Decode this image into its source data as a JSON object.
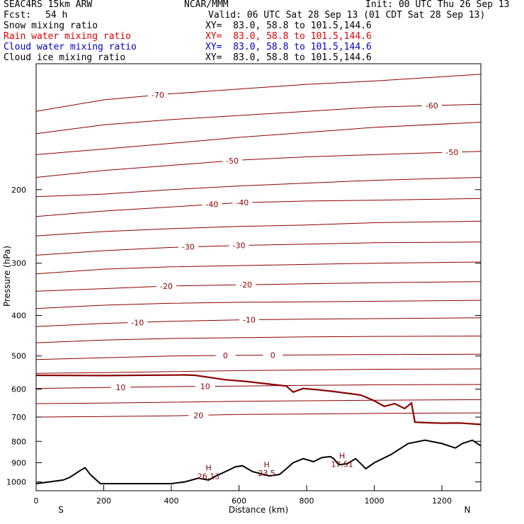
{
  "header": {
    "model": "SEAC4RS 15km ARW",
    "center": "NCAR/MMM",
    "init": "Init: 00 UTC Thu 26 Sep 13",
    "fcst_label": "Fcst:",
    "fcst_value": "54 h",
    "valid": "Valid: 06 UTC Sat 28 Sep 13 (01 CDT Sat 28 Sep 13)",
    "fields": [
      {
        "name": "Snow mixing ratio",
        "xy": "XY=  83.0, 58.8 to 101.5,144.6",
        "color": "#000000"
      },
      {
        "name": "Rain water mixing ratio",
        "xy": "XY=  83.0, 58.8 to 101.5,144.6",
        "color": "#e00000"
      },
      {
        "name": "Cloud water mixing ratio",
        "xy": "XY=  83.0, 58.8 to 101.5,144.6",
        "color": "#0000cc"
      },
      {
        "name": "Cloud ice mixing ratio",
        "xy": "XY=  83.0, 58.8 to 101.5,144.6",
        "color": "#000000"
      }
    ]
  },
  "chart_data": {
    "type": "line",
    "ylabel": "Pressure (hPa)",
    "xlabel": "Distance (km)",
    "x_ticks": [
      0,
      200,
      400,
      600,
      800,
      1000,
      1200
    ],
    "y_ticks": [
      200,
      300,
      400,
      500,
      600,
      700,
      800,
      900,
      1000
    ],
    "xlim": [
      0,
      1315
    ],
    "ylim": [
      1050,
      100
    ],
    "y_scale": "log",
    "left_end_label": "S",
    "right_end_label": "N",
    "contour_color": "#8b0000",
    "terrain_color": "#000000",
    "isotherm_labels": [
      "-70",
      "-60",
      "-50",
      "-50",
      "-40",
      "-40",
      "-30",
      "-30",
      "-20",
      "-20",
      "-10",
      "-10",
      "0",
      "0",
      "10",
      "10",
      "20"
    ],
    "highs": [
      {
        "mark": "H",
        "value": "26.13",
        "x": 510,
        "p": 985
      },
      {
        "mark": "H",
        "value": "23.5",
        "x": 682,
        "p": 968
      },
      {
        "mark": "H",
        "value": "17.51",
        "x": 905,
        "p": 922
      }
    ],
    "series": [
      {
        "level": -70,
        "x": [
          0,
          200,
          400,
          600,
          800,
          1000,
          1315
        ],
        "p": [
          130,
          122,
          118,
          115,
          112,
          110,
          106
        ]
      },
      {
        "level": -60,
        "x": [
          0,
          200,
          400,
          600,
          800,
          1000,
          1315
        ],
        "p": [
          147,
          140,
          136,
          133,
          130,
          127,
          125
        ]
      },
      {
        "level": -55,
        "x": [
          0,
          200,
          400,
          600,
          800,
          1000,
          1315
        ],
        "p": [
          165,
          160,
          155,
          150,
          146,
          142,
          138
        ]
      },
      {
        "level": -50,
        "x": [
          0,
          200,
          400,
          600,
          800,
          1000,
          1315
        ],
        "p": [
          187,
          180,
          175,
          170,
          167,
          165,
          162
        ]
      },
      {
        "level": -45,
        "x": [
          0,
          200,
          400,
          600,
          800,
          1000,
          1315
        ],
        "p": [
          208,
          205,
          200,
          196,
          193,
          190,
          187
        ]
      },
      {
        "level": -40,
        "x": [
          0,
          200,
          400,
          600,
          800,
          1000,
          1315
        ],
        "p": [
          232,
          225,
          220,
          215,
          213,
          212,
          210
        ]
      },
      {
        "level": -35,
        "x": [
          0,
          200,
          400,
          600,
          800,
          1000,
          1315
        ],
        "p": [
          258,
          252,
          248,
          245,
          243,
          240,
          238
        ]
      },
      {
        "level": -30,
        "x": [
          0,
          200,
          400,
          600,
          800,
          1000,
          1315
        ],
        "p": [
          287,
          280,
          275,
          272,
          270,
          268,
          267
        ]
      },
      {
        "level": -25,
        "x": [
          0,
          200,
          400,
          600,
          800,
          1000,
          1315
        ],
        "p": [
          318,
          310,
          306,
          304,
          302,
          300,
          298
        ]
      },
      {
        "level": -20,
        "x": [
          0,
          200,
          400,
          600,
          800,
          1000,
          1315
        ],
        "p": [
          350,
          345,
          340,
          338,
          336,
          334,
          332
        ]
      },
      {
        "level": -15,
        "x": [
          0,
          200,
          400,
          600,
          800,
          1000,
          1315
        ],
        "p": [
          385,
          378,
          374,
          372,
          371,
          370,
          368
        ]
      },
      {
        "level": -10,
        "x": [
          0,
          200,
          400,
          600,
          800,
          1000,
          1315
        ],
        "p": [
          425,
          418,
          413,
          410,
          408,
          407,
          405
        ]
      },
      {
        "level": -5,
        "x": [
          0,
          200,
          400,
          600,
          800,
          1000,
          1315
        ],
        "p": [
          465,
          458,
          454,
          452,
          450,
          449,
          448
        ]
      },
      {
        "level": 0,
        "x": [
          0,
          200,
          400,
          600,
          800,
          1000,
          1315
        ],
        "p": [
          510,
          505,
          500,
          498,
          497,
          496,
          495
        ]
      },
      {
        "level": 5,
        "x": [
          0,
          200,
          400,
          600,
          800,
          1000,
          1315
        ],
        "p": [
          550,
          548,
          545,
          542,
          540,
          538,
          537
        ]
      },
      {
        "level": 10,
        "x": [
          0,
          200,
          400,
          600,
          800,
          1000,
          1315
        ],
        "p": [
          598,
          595,
          592,
          590,
          588,
          586,
          585
        ]
      },
      {
        "level": 15,
        "x": [
          0,
          200,
          400,
          600,
          800,
          1000,
          1315
        ],
        "p": [
          650,
          648,
          645,
          642,
          640,
          638,
          636
        ]
      },
      {
        "level": 20,
        "x": [
          0,
          200,
          400,
          600,
          800,
          1000,
          1315
        ],
        "p": [
          700,
          698,
          695,
          690,
          688,
          686,
          684
        ]
      }
    ],
    "freezing_level": {
      "x": [
        0,
        200,
        440,
        470,
        560,
        620,
        700,
        740,
        760,
        790,
        830,
        880,
        960,
        1000,
        1030,
        1060,
        1090,
        1110,
        1120,
        1140,
        1200,
        1250,
        1315
      ],
      "p": [
        556,
        557,
        555,
        556,
        570,
        575,
        585,
        590,
        610,
        598,
        602,
        608,
        620,
        640,
        660,
        650,
        668,
        648,
        720,
        721,
        724,
        723,
        729
      ]
    },
    "terrain": {
      "x": [
        0,
        40,
        80,
        100,
        130,
        145,
        160,
        190,
        230,
        300,
        400,
        440,
        480,
        510,
        530,
        560,
        590,
        610,
        640,
        690,
        720,
        740,
        760,
        790,
        820,
        845,
        870,
        880,
        895,
        920,
        945,
        975,
        1000,
        1050,
        1100,
        1150,
        1200,
        1240,
        1260,
        1290,
        1315
      ],
      "p": [
        1010,
        1000,
        990,
        975,
        940,
        925,
        960,
        1010,
        1010,
        1010,
        1010,
        1000,
        980,
        990,
        970,
        945,
        920,
        915,
        945,
        968,
        960,
        930,
        900,
        880,
        895,
        875,
        870,
        880,
        910,
        905,
        880,
        930,
        900,
        860,
        810,
        795,
        810,
        830,
        810,
        795,
        820
      ]
    }
  }
}
